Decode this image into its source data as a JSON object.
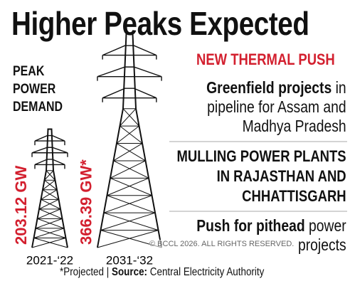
{
  "title": "Higher Peaks Expected",
  "chart_data": {
    "type": "tower",
    "label": "PEAK POWER DEMAND",
    "categories": [
      "2021-‘22",
      "2031-‘32"
    ],
    "values": [
      203.12,
      366.39
    ],
    "value_labels": [
      "203.12 GW",
      "366.39 GW*"
    ],
    "color": "#d3202f"
  },
  "panel": {
    "heading": "NEW THERMAL PUSH",
    "items": [
      {
        "bold": "Greenfield projects",
        "text": "in pipeline for Assam and Madhya Pradesh"
      },
      {
        "bold": "MULLING POWER PLANTS IN RAJASTHAN AND CHHATTISGARH"
      },
      {
        "bold": "Push for pithead",
        "text": "power projects"
      }
    ]
  },
  "footnote": {
    "note": "*Projected |",
    "source_label": "Source:",
    "source": "Central Electricity Authority"
  },
  "watermark": "© BCCL 2026. ALL RIGHTS RESERVED."
}
